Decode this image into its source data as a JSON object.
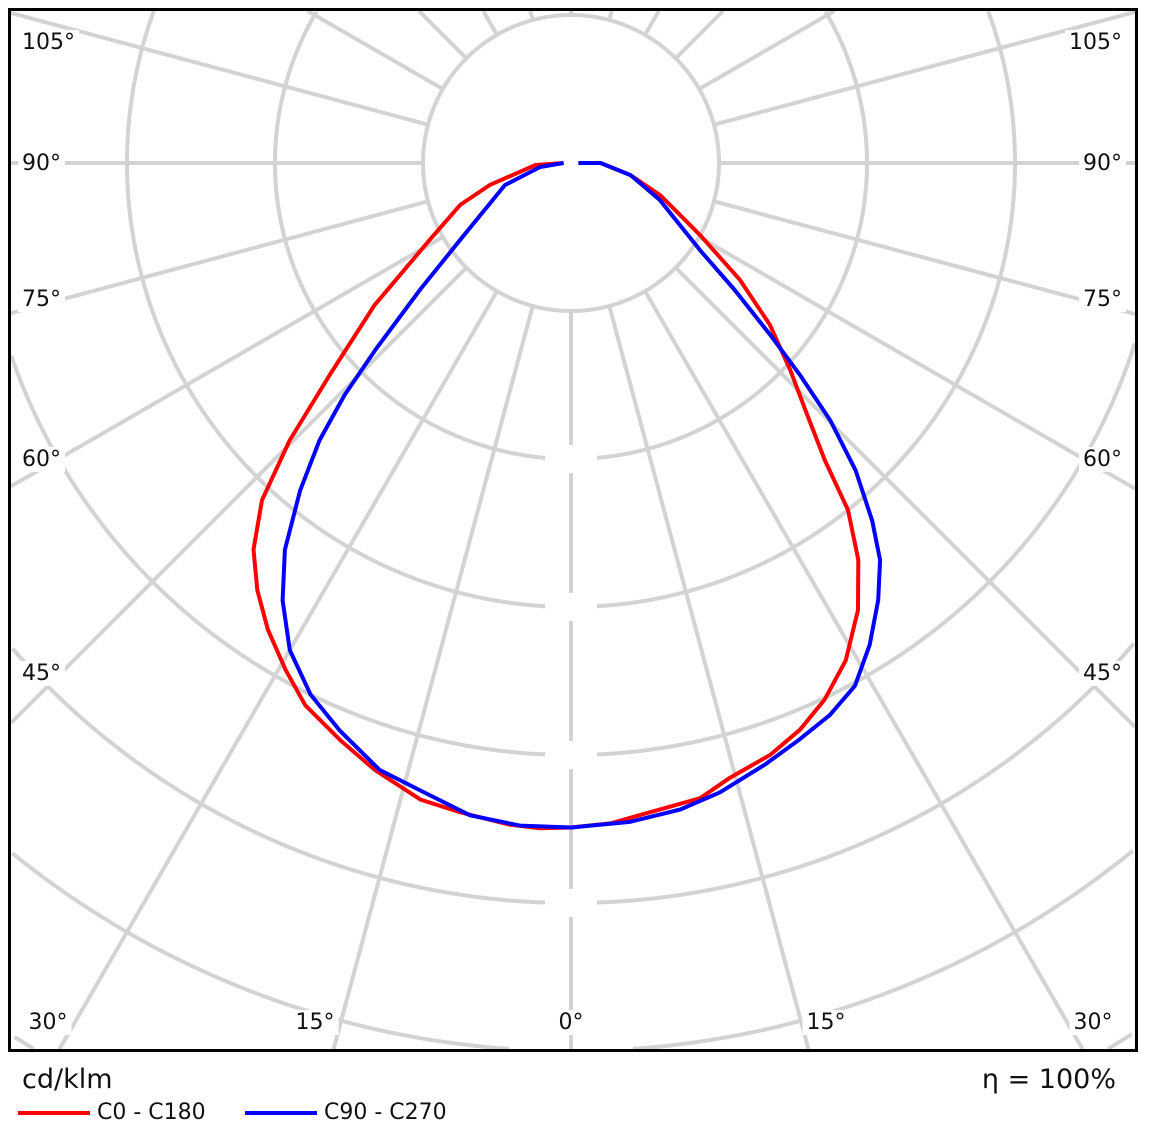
{
  "chart_data": {
    "type": "polar",
    "unit_label": "cd/klm",
    "efficiency_label": "η = 100%",
    "angle_tick_labels_left": [
      "105°",
      "90°",
      "75°",
      "60°",
      "45°"
    ],
    "angle_tick_labels_right": [
      "105°",
      "90°",
      "75°",
      "60°",
      "45°"
    ],
    "angle_tick_labels_bottom": [
      "30°",
      "15°",
      "0°",
      "15°",
      "30°"
    ],
    "angle_grid_step_deg": 15,
    "radial_grid": true,
    "legend_position": "bottom-left",
    "series": [
      {
        "name": "C0 - C180",
        "color": "#ff0000",
        "left": [
          [
            0,
            4.49
          ],
          [
            2.7,
            4.5
          ],
          [
            5.3,
            4.49
          ],
          [
            9.7,
            4.45
          ],
          [
            13.3,
            4.42
          ],
          [
            17.9,
            4.31
          ],
          [
            21.8,
            4.2
          ],
          [
            26.1,
            4.08
          ],
          [
            29.4,
            3.93
          ],
          [
            33,
            3.76
          ],
          [
            36.3,
            3.58
          ],
          [
            39.4,
            3.38
          ],
          [
            42.5,
            3.09
          ],
          [
            45.4,
            2.67
          ],
          [
            48.7,
            2.17
          ],
          [
            54.1,
            1.64
          ],
          [
            61.4,
            1.09
          ],
          [
            69.3,
            0.8
          ],
          [
            74.8,
            0.57
          ],
          [
            86.8,
            0.24
          ],
          [
            90,
            0.05
          ]
        ],
        "right": [
          [
            0,
            4.49
          ],
          [
            3.4,
            4.47
          ],
          [
            7.8,
            4.41
          ],
          [
            11.5,
            4.38
          ],
          [
            14.5,
            4.29
          ],
          [
            18.6,
            4.22
          ],
          [
            22,
            4.13
          ],
          [
            25.3,
            4.01
          ],
          [
            28.9,
            3.84
          ],
          [
            32.7,
            3.59
          ],
          [
            35.9,
            3.31
          ],
          [
            38.6,
            3.0
          ],
          [
            40.5,
            2.64
          ],
          [
            43.5,
            2.3
          ],
          [
            46.6,
            2.04
          ],
          [
            50.9,
            1.73
          ],
          [
            55.3,
            1.39
          ],
          [
            60.8,
            1.0
          ],
          [
            70.2,
            0.64
          ],
          [
            78.5,
            0.41
          ],
          [
            90,
            0.2
          ],
          [
            90,
            0.05
          ]
        ]
      },
      {
        "name": "C90 - C270",
        "color": "#0000ff",
        "left": [
          [
            0,
            4.49
          ],
          [
            4.4,
            4.49
          ],
          [
            8.8,
            4.46
          ],
          [
            13.5,
            4.36
          ],
          [
            17.5,
            4.3
          ],
          [
            22.2,
            4.14
          ],
          [
            26.1,
            4.0
          ],
          [
            30,
            3.8
          ],
          [
            33.4,
            3.54
          ],
          [
            36.5,
            3.25
          ],
          [
            39.6,
            2.87
          ],
          [
            42.2,
            2.53
          ],
          [
            44.3,
            2.19
          ],
          [
            46.3,
            1.83
          ],
          [
            50,
            1.33
          ],
          [
            55.3,
            0.91
          ],
          [
            71.6,
            0.47
          ],
          [
            82.6,
            0.21
          ],
          [
            90,
            0.05
          ]
        ],
        "right": [
          [
            0,
            4.49
          ],
          [
            5.1,
            4.47
          ],
          [
            9.6,
            4.43
          ],
          [
            13.3,
            4.37
          ],
          [
            17.9,
            4.27
          ],
          [
            21.6,
            4.19
          ],
          [
            25.1,
            4.12
          ],
          [
            28.5,
            4.02
          ],
          [
            31.8,
            3.83
          ],
          [
            35.1,
            3.61
          ],
          [
            37.9,
            3.4
          ],
          [
            40.1,
            3.16
          ],
          [
            42.8,
            2.83
          ],
          [
            45.2,
            2.47
          ],
          [
            47.2,
            2.11
          ],
          [
            49.2,
            1.78
          ],
          [
            52.2,
            1.4
          ],
          [
            56,
            1.05
          ],
          [
            67.4,
            0.65
          ],
          [
            78.5,
            0.41
          ],
          [
            90,
            0.2
          ],
          [
            90,
            0.05
          ]
        ]
      }
    ]
  }
}
